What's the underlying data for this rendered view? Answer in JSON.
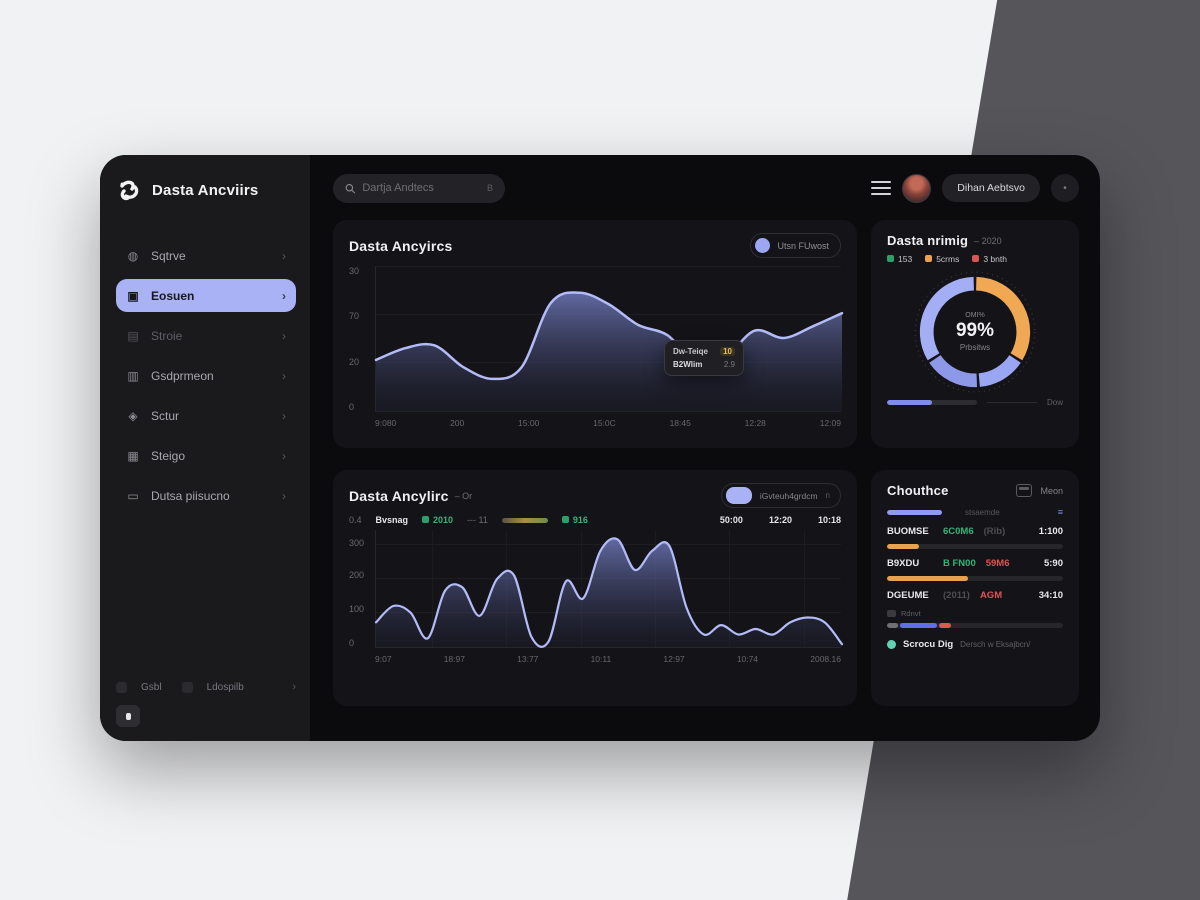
{
  "app": {
    "logo_title": "Dasta Ancviirs"
  },
  "theme": {
    "accent": "#a9b2f4",
    "green": "#2ba06c",
    "orange": "#eda04f",
    "red": "#d95555",
    "amber": "#e6c15a",
    "window_bg": "#0b0b0d",
    "card_bg": "#141418"
  },
  "topbar": {
    "search_placeholder": "Dartja Andtecs",
    "search_hint": "B",
    "profile_button": "Dihan Aebtsvo",
    "more_button": "•"
  },
  "sidebar": {
    "items": [
      {
        "label": "Sqtrve",
        "icon": "bell-icon"
      },
      {
        "label": "Eosuen",
        "icon": "board-icon",
        "active": true
      },
      {
        "label": "Stroie",
        "icon": "monitor-icon",
        "dim": true
      },
      {
        "label": "Gsdprmeon",
        "icon": "bag-icon"
      },
      {
        "label": "Sctur",
        "icon": "lock-icon"
      },
      {
        "label": "Steigo",
        "icon": "printer-icon"
      },
      {
        "label": "Dutsa piisucno",
        "icon": "card-icon"
      }
    ],
    "footer": {
      "left": "Gsbl",
      "right": "Ldospilb"
    }
  },
  "cards": {
    "activity": {
      "title": "Dasta Ancyircs",
      "legend_pill": "Utsn FUwost",
      "tooltip": {
        "line1_label": "Dw-Teiqe",
        "line1_value": "10",
        "line2_label": "B2Wlim",
        "line2_value": "2.9"
      }
    },
    "rating": {
      "title": "Dasta nrimig",
      "period": "– 2020",
      "legend": [
        {
          "label": "153"
        },
        {
          "label": "5crms"
        },
        {
          "label": "3 bnth"
        }
      ],
      "progress_pct": 50,
      "footer_label": "Dow"
    },
    "traffic": {
      "title": "Dasta Ancylirc",
      "period": "– Or",
      "toggle_label": "iGvteuh4grdcm",
      "toggle_hint": "n",
      "stats": {
        "s1": "0.4",
        "s2": "Bvsnag",
        "s3": "2010",
        "s4": "--- 11",
        "s5": "916",
        "s6": "50:00",
        "s7": "12:20",
        "s8": "10:18"
      }
    },
    "choices": {
      "title": "Chouthce",
      "action": "Meon",
      "rowA": {
        "label": "stsaemde",
        "right": "≡",
        "bar_pct": 78
      },
      "rows": [
        {
          "c1": "BUOMSE",
          "c2": "6C0M6",
          "c3": "(Rib)",
          "c4": "1:100",
          "bar_pct": 18
        },
        {
          "c1": "B9XDU",
          "c2": "B FN00",
          "c3": "59M6",
          "c4": "5:90",
          "bar_pct": 46
        },
        {
          "c1": "DGEUME",
          "c2": "(2011)",
          "c3": "AGM",
          "c4": "34:10"
        }
      ],
      "mini": "Rdnvt",
      "multibar": [
        {
          "pct": 6
        },
        {
          "pct": 21
        },
        {
          "pct": 7
        }
      ],
      "footer": {
        "name": "Scrocu Dig",
        "desc": "Dersch w Eksajbcn/"
      }
    }
  },
  "chart_data": [
    {
      "type": "area",
      "title": "Dasta Ancyircs",
      "y_ticks": [
        "30",
        "70",
        "20",
        "0"
      ],
      "x_ticks": [
        "9:080",
        "200",
        "15:00",
        "15:0C",
        "18:45",
        "12:28",
        "12:09"
      ],
      "values": [
        35,
        43,
        45,
        30,
        22,
        30,
        74,
        81,
        73,
        59,
        52,
        33,
        37,
        55,
        50,
        58,
        67
      ],
      "render_max": 100,
      "ylim": [
        0,
        100
      ],
      "line_color": "#b3bcf8",
      "grid": true
    },
    {
      "type": "area",
      "title": "Dasta Ancylirc",
      "y_ticks": [
        "300",
        "200",
        "100",
        "0"
      ],
      "x_ticks": [
        "9:07",
        "18:97",
        "13:77",
        "10:11",
        "12:97",
        "10:74",
        "2008.16"
      ],
      "values": [
        71,
        118,
        99,
        25,
        162,
        172,
        90,
        195,
        206,
        30,
        16,
        189,
        140,
        277,
        310,
        222,
        277,
        291,
        112,
        36,
        63,
        36,
        52,
        36,
        71,
        85,
        71,
        8
      ],
      "render_max": 340,
      "ylim": [
        0,
        300
      ],
      "line_color": "#b3bcf8",
      "grid": true
    },
    {
      "type": "donut",
      "center_top": "OMI%",
      "center_value": "99%",
      "center_label": "Prbsitws",
      "segments": [
        {
          "name": "orange",
          "value": 34,
          "color": "#f0a855"
        },
        {
          "name": "blue-1",
          "value": 15,
          "color": "#9aa6f2"
        },
        {
          "name": "blue-2",
          "value": 17,
          "color": "#8d99e8"
        },
        {
          "name": "blue-3",
          "value": 34,
          "color": "#a3aef5"
        }
      ]
    }
  ]
}
